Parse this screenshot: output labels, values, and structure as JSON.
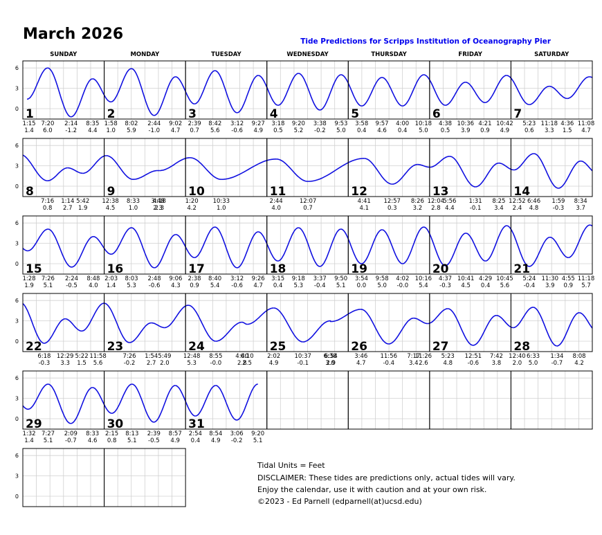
{
  "title": "March 2026",
  "subtitle": "Tide Predictions for Scripps Institution of Oceanography Pier",
  "weekdays": [
    "SUNDAY",
    "MONDAY",
    "TUESDAY",
    "WEDNESDAY",
    "THURSDAY",
    "FRIDAY",
    "SATURDAY"
  ],
  "yticks": [
    0,
    3,
    6
  ],
  "days": [
    {
      "number": 1,
      "tides": [
        {
          "time": "1:15",
          "height": "1.4"
        },
        {
          "time": "7:20",
          "height": "6.0"
        },
        {
          "time": "2:14",
          "height": "-1.2"
        },
        {
          "time": "8:35",
          "height": "4.4"
        }
      ]
    },
    {
      "number": 2,
      "tides": [
        {
          "time": "1:58",
          "height": "1.0"
        },
        {
          "time": "8:02",
          "height": "5.9"
        },
        {
          "time": "2:44",
          "height": "-1.0"
        },
        {
          "time": "9:02",
          "height": "4.7"
        }
      ]
    },
    {
      "number": 3,
      "tides": [
        {
          "time": "2:39",
          "height": "0.7"
        },
        {
          "time": "8:42",
          "height": "5.6"
        },
        {
          "time": "3:12",
          "height": "-0.6"
        },
        {
          "time": "9:27",
          "height": "4.9"
        }
      ]
    },
    {
      "number": 4,
      "tides": [
        {
          "time": "3:18",
          "height": "0.5"
        },
        {
          "time": "9:20",
          "height": "5.2"
        },
        {
          "time": "3:38",
          "height": "-0.2"
        },
        {
          "time": "9:53",
          "height": "5.0"
        }
      ]
    },
    {
      "number": 5,
      "tides": [
        {
          "time": "3:58",
          "height": "0.4"
        },
        {
          "time": "9:57",
          "height": "4.6"
        },
        {
          "time": "4:00",
          "height": "0.4"
        },
        {
          "time": "10:18",
          "height": "5.0"
        }
      ]
    },
    {
      "number": 6,
      "tides": [
        {
          "time": "4:38",
          "height": "0.5"
        },
        {
          "time": "10:36",
          "height": "3.9"
        },
        {
          "time": "4:21",
          "height": "0.9"
        },
        {
          "time": "10:42",
          "height": "4.9"
        }
      ]
    },
    {
      "number": 7,
      "tides": [
        {
          "time": "5:23",
          "height": "0.6"
        },
        {
          "time": "11:18",
          "height": "3.3"
        },
        {
          "time": "4:36",
          "height": "1.5"
        },
        {
          "time": "11:08",
          "height": "4.7"
        }
      ]
    },
    {
      "number": 8,
      "tides": [
        {
          "time": "7:16",
          "height": "0.8"
        },
        {
          "time": "1:14",
          "height": "2.7"
        },
        {
          "time": "5:42",
          "height": "1.9"
        }
      ]
    },
    {
      "number": 9,
      "tides": [
        {
          "time": "12:38",
          "height": "4.5"
        },
        {
          "time": "8:33",
          "height": "1.0"
        },
        {
          "time": "3:48",
          "height": "2.3"
        },
        {
          "time": "4:18",
          "height": "2.3"
        }
      ]
    },
    {
      "number": 10,
      "tides": [
        {
          "time": "1:20",
          "height": "4.2"
        },
        {
          "time": "10:33",
          "height": "1.0"
        }
      ]
    },
    {
      "number": 11,
      "tides": [
        {
          "time": "2:44",
          "height": "4.0"
        },
        {
          "time": "12:07",
          "height": "0.7"
        }
      ]
    },
    {
      "number": 12,
      "tides": [
        {
          "time": "4:41",
          "height": "4.1"
        },
        {
          "time": "12:57",
          "height": "0.3"
        },
        {
          "time": "8:26",
          "height": "3.2"
        }
      ]
    },
    {
      "number": 13,
      "tides": [
        {
          "time": "12:04",
          "height": "2.8"
        },
        {
          "time": "5:56",
          "height": "4.4"
        },
        {
          "time": "1:31",
          "height": "-0.1"
        },
        {
          "time": "8:25",
          "height": "3.4"
        }
      ]
    },
    {
      "number": 14,
      "tides": [
        {
          "time": "12:52",
          "height": "2.4"
        },
        {
          "time": "6:46",
          "height": "4.8"
        },
        {
          "time": "1:59",
          "height": "-0.3"
        },
        {
          "time": "8:34",
          "height": "3.7"
        }
      ]
    },
    {
      "number": 15,
      "tides": [
        {
          "time": "1:28",
          "height": "1.9"
        },
        {
          "time": "7:26",
          "height": "5.1"
        },
        {
          "time": "2:24",
          "height": "-0.5"
        },
        {
          "time": "8:48",
          "height": "4.0"
        }
      ]
    },
    {
      "number": 16,
      "tides": [
        {
          "time": "2:03",
          "height": "1.4"
        },
        {
          "time": "8:03",
          "height": "5.3"
        },
        {
          "time": "2:48",
          "height": "-0.6"
        },
        {
          "time": "9:06",
          "height": "4.3"
        }
      ]
    },
    {
      "number": 17,
      "tides": [
        {
          "time": "2:38",
          "height": "0.9"
        },
        {
          "time": "8:40",
          "height": "5.4"
        },
        {
          "time": "3:12",
          "height": "-0.6"
        },
        {
          "time": "9:26",
          "height": "4.7"
        }
      ]
    },
    {
      "number": 18,
      "tides": [
        {
          "time": "3:15",
          "height": "0.4"
        },
        {
          "time": "9:18",
          "height": "5.3"
        },
        {
          "time": "3:37",
          "height": "-0.4"
        },
        {
          "time": "9:50",
          "height": "5.1"
        }
      ]
    },
    {
      "number": 19,
      "tides": [
        {
          "time": "3:54",
          "height": "0.0"
        },
        {
          "time": "9:58",
          "height": "5.0"
        },
        {
          "time": "4:02",
          "height": "-0.0"
        },
        {
          "time": "10:16",
          "height": "5.4"
        }
      ]
    },
    {
      "number": 20,
      "tides": [
        {
          "time": "4:37",
          "height": "-0.3"
        },
        {
          "time": "10:41",
          "height": "4.5"
        },
        {
          "time": "4:29",
          "height": "0.4"
        },
        {
          "time": "10:45",
          "height": "5.6"
        }
      ]
    },
    {
      "number": 21,
      "tides": [
        {
          "time": "5:24",
          "height": "-0.4"
        },
        {
          "time": "11:30",
          "height": "3.9"
        },
        {
          "time": "4:55",
          "height": "0.9"
        },
        {
          "time": "11:18",
          "height": "5.7"
        }
      ]
    },
    {
      "number": 22,
      "tides": [
        {
          "time": "6:18",
          "height": "-0.3"
        },
        {
          "time": "12:29",
          "height": "3.3"
        },
        {
          "time": "5:22",
          "height": "1.5"
        },
        {
          "time": "11:58",
          "height": "5.6"
        }
      ]
    },
    {
      "number": 23,
      "tides": [
        {
          "time": "7:26",
          "height": "-0.2"
        },
        {
          "time": "1:54",
          "height": "2.7"
        },
        {
          "time": "5:49",
          "height": "2.0"
        }
      ]
    },
    {
      "number": 24,
      "tides": [
        {
          "time": "12:48",
          "height": "5.3"
        },
        {
          "time": "8:55",
          "height": "-0.0"
        },
        {
          "time": "4:40",
          "height": "2.8"
        },
        {
          "time": "6:10",
          "height": "2.5"
        }
      ]
    },
    {
      "number": 25,
      "tides": [
        {
          "time": "2:02",
          "height": "4.9"
        },
        {
          "time": "10:37",
          "height": "-0.1"
        },
        {
          "time": "6:38",
          "height": "3.0"
        },
        {
          "time": "6:54",
          "height": "2.9"
        }
      ]
    },
    {
      "number": 26,
      "tides": [
        {
          "time": "3:46",
          "height": "4.7"
        },
        {
          "time": "11:56",
          "height": "-0.4"
        },
        {
          "time": "7:17",
          "height": "3.4"
        },
        {
          "time": "11:26",
          "height": "2.6"
        }
      ]
    },
    {
      "number": 27,
      "tides": [
        {
          "time": "5:23",
          "height": "4.8"
        },
        {
          "time": "12:51",
          "height": "-0.6"
        },
        {
          "time": "7:42",
          "height": "3.8"
        }
      ]
    },
    {
      "number": 28,
      "tides": [
        {
          "time": "12:40",
          "height": "2.0"
        },
        {
          "time": "6:33",
          "height": "5.0"
        },
        {
          "time": "1:34",
          "height": "-0.7"
        },
        {
          "time": "8:08",
          "height": "4.2"
        }
      ]
    },
    {
      "number": 29,
      "tides": [
        {
          "time": "1:32",
          "height": "1.4"
        },
        {
          "time": "7:27",
          "height": "5.1"
        },
        {
          "time": "2:09",
          "height": "-0.7"
        },
        {
          "time": "8:33",
          "height": "4.6"
        }
      ]
    },
    {
      "number": 30,
      "tides": [
        {
          "time": "2:15",
          "height": "0.8"
        },
        {
          "time": "8:13",
          "height": "5.1"
        },
        {
          "time": "2:39",
          "height": "-0.5"
        },
        {
          "time": "8:57",
          "height": "4.9"
        }
      ]
    },
    {
      "number": 31,
      "tides": [
        {
          "time": "2:54",
          "height": "0.4"
        },
        {
          "time": "8:54",
          "height": "4.9"
        },
        {
          "time": "3:06",
          "height": "-0.2"
        },
        {
          "time": "9:20",
          "height": "5.1"
        }
      ]
    }
  ],
  "footer": [
    "Tidal Units = Feet",
    "DISCLAIMER: These tides are predictions only, actual tides will vary.",
    "Enjoy the calendar, use it with caution and at your own risk.",
    "©2023 - Ed Parnell (edparnell(at)ucsd.edu)"
  ]
}
